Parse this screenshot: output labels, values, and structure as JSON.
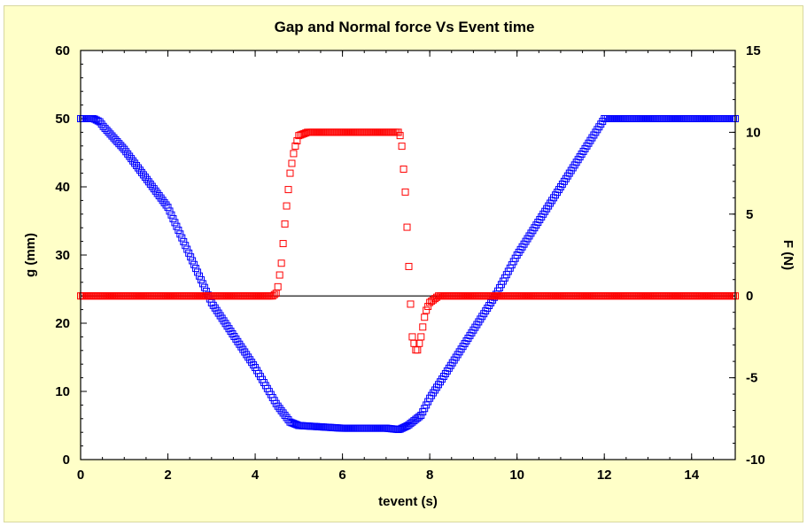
{
  "chart_data": {
    "type": "scatter",
    "title": "Gap and Normal force Vs Event time",
    "xlabel": "tevent (s)",
    "ylabel_left": "g (mm)",
    "ylabel_right": "F (N)",
    "xlim": [
      0,
      15
    ],
    "ylim_left": [
      0,
      60
    ],
    "ylim_right": [
      -10,
      15
    ],
    "x_ticks": [
      0,
      2,
      4,
      6,
      8,
      10,
      12,
      14
    ],
    "y_left_ticks": [
      0,
      10,
      20,
      30,
      40,
      50,
      60
    ],
    "y_right_ticks": [
      -10,
      -5,
      0,
      5,
      10,
      15
    ],
    "zero_line_right": 0,
    "series": [
      {
        "axis": "left",
        "color": "#0000ff",
        "marker": "open-square",
        "points": [
          [
            0,
            50
          ],
          [
            0.3,
            50
          ],
          [
            0.45,
            49.5
          ],
          [
            0.5,
            49
          ],
          [
            1,
            45.5
          ],
          [
            2,
            37
          ],
          [
            3,
            23
          ],
          [
            4,
            13.5
          ],
          [
            4.5,
            8
          ],
          [
            4.8,
            5.5
          ],
          [
            5,
            5
          ],
          [
            5.5,
            4.8
          ],
          [
            6,
            4.6
          ],
          [
            7,
            4.6
          ],
          [
            7.3,
            4.4
          ],
          [
            7.5,
            5
          ],
          [
            7.8,
            6.5
          ],
          [
            8,
            9
          ],
          [
            9,
            19
          ],
          [
            9.5,
            24
          ],
          [
            10,
            30
          ],
          [
            11,
            40
          ],
          [
            11.5,
            45
          ],
          [
            12,
            50
          ],
          [
            12.5,
            50
          ],
          [
            13,
            50
          ],
          [
            14,
            50
          ],
          [
            15,
            50
          ]
        ]
      },
      {
        "axis": "right",
        "color": "#ff0000",
        "marker": "open-square",
        "points": [
          [
            0,
            0
          ],
          [
            4,
            0
          ],
          [
            4.4,
            0
          ],
          [
            4.5,
            0.2
          ],
          [
            4.6,
            2
          ],
          [
            4.7,
            5
          ],
          [
            4.8,
            7.5
          ],
          [
            4.9,
            9
          ],
          [
            5,
            9.8
          ],
          [
            5.2,
            10
          ],
          [
            6,
            10
          ],
          [
            7,
            10
          ],
          [
            7.3,
            10
          ],
          [
            7.35,
            9.5
          ],
          [
            7.45,
            6
          ],
          [
            7.55,
            0
          ],
          [
            7.6,
            -2.5
          ],
          [
            7.7,
            -3.5
          ],
          [
            7.8,
            -2.5
          ],
          [
            7.9,
            -1
          ],
          [
            8,
            -0.4
          ],
          [
            8.2,
            0
          ],
          [
            9,
            0
          ],
          [
            10,
            0
          ],
          [
            12,
            0
          ],
          [
            14,
            0
          ],
          [
            15,
            0
          ]
        ]
      }
    ]
  }
}
